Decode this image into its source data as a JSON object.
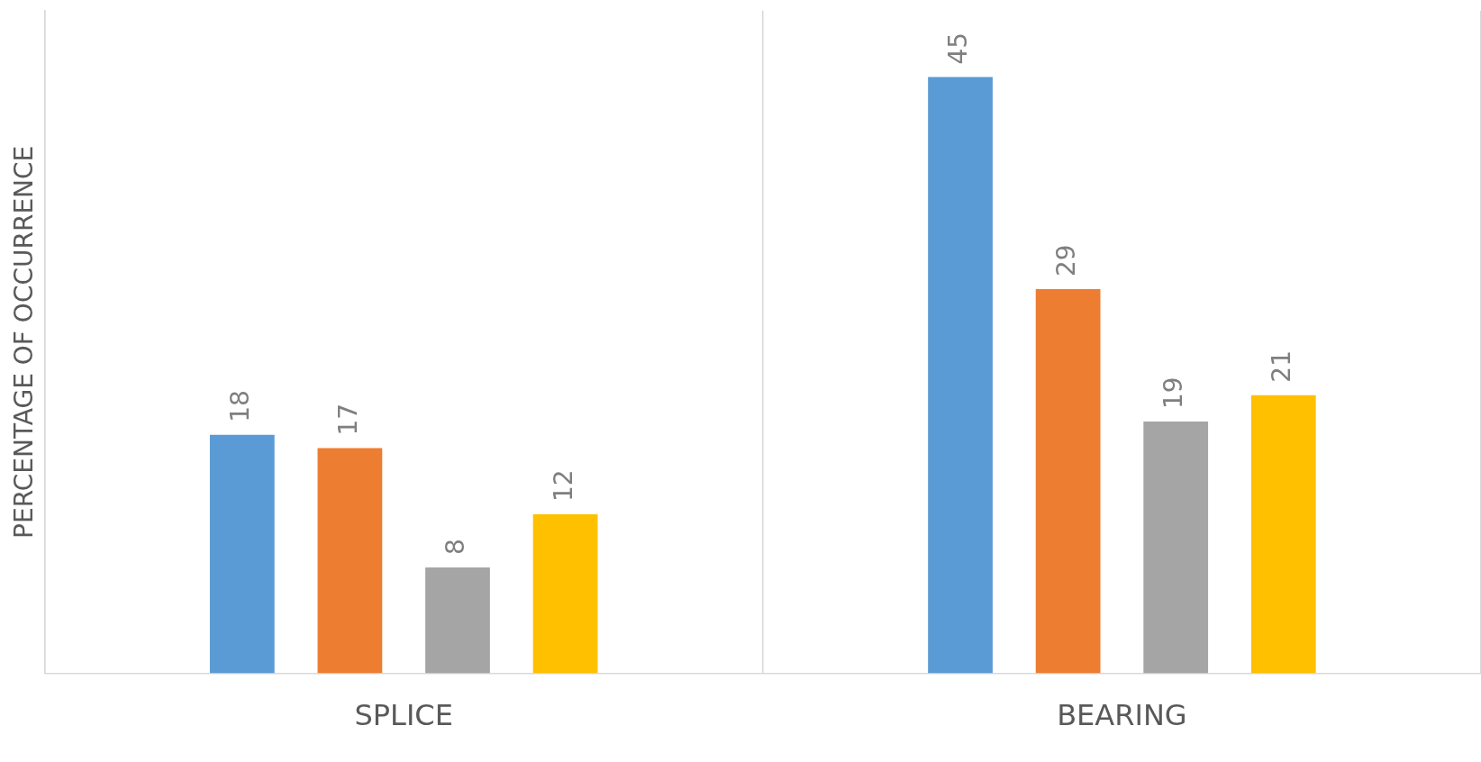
{
  "chart_data": {
    "type": "bar",
    "ylabel": "PERCENTAGE OF OCCURRENCE",
    "categories": [
      "SPLICE",
      "BEARING"
    ],
    "series": [
      {
        "color": "#5b9bd5",
        "values": [
          18,
          45
        ]
      },
      {
        "color": "#ed7d31",
        "values": [
          17,
          29
        ]
      },
      {
        "color": "#a5a5a5",
        "values": [
          8,
          19
        ]
      },
      {
        "color": "#ffc000",
        "values": [
          12,
          21
        ]
      }
    ],
    "ylim": [
      0,
      50
    ],
    "tick_labels": "x",
    "grid": "x",
    "legend": false,
    "data_labels": true
  }
}
